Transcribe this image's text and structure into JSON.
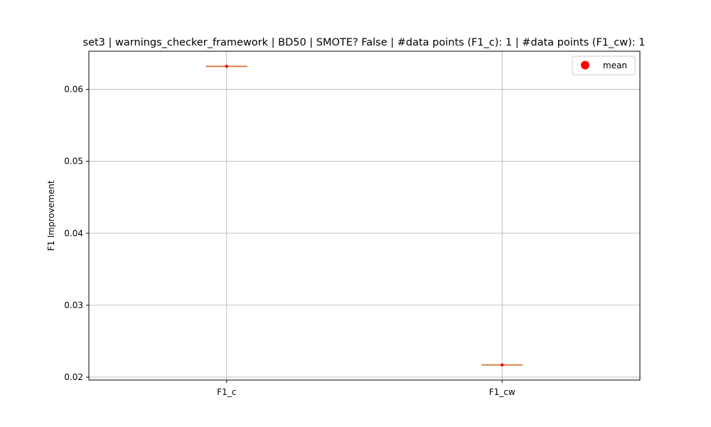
{
  "chart_data": {
    "type": "box",
    "title": "set3 | warnings_checker_framework | BD50 | SMOTE? False | #data points (F1_c): 1 | #data points (F1_cw): 1",
    "xlabel": "",
    "ylabel": "F1 Improvement",
    "categories": [
      "F1_c",
      "F1_cw"
    ],
    "values": [
      0.0632,
      0.0217
    ],
    "means": [
      0.0632,
      0.0217
    ],
    "ylim": [
      0.0196,
      0.0653
    ],
    "yticks": [
      0.02,
      0.03,
      0.04,
      0.05,
      0.06
    ],
    "ytick_labels": [
      "0.02",
      "0.03",
      "0.04",
      "0.05",
      "0.06"
    ],
    "grid": true,
    "legend": {
      "position": "top-right",
      "entries": [
        "mean"
      ]
    },
    "colors": {
      "median": "#d9844a",
      "mean": "#ff0000",
      "box": "#000000",
      "grid": "#b0b0b0"
    }
  }
}
